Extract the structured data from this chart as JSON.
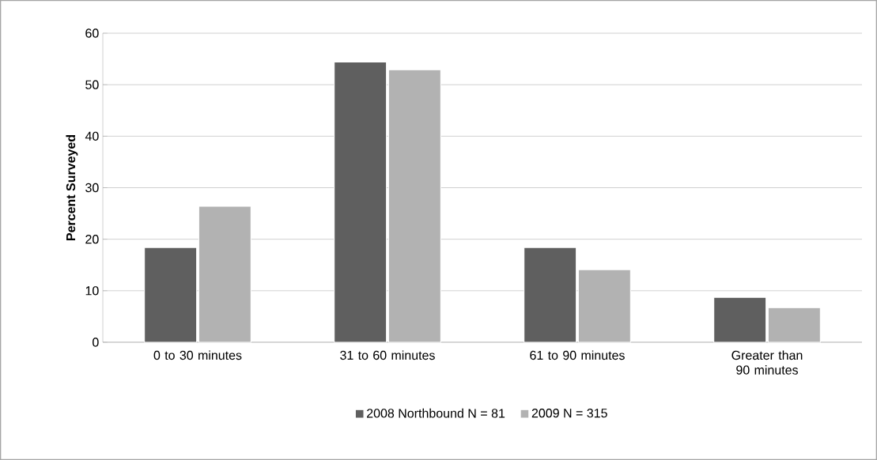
{
  "chart_data": {
    "type": "bar",
    "ylabel": "Percent Surveyed",
    "categories": [
      "0 to 30 minutes",
      "31 to 60 minutes",
      "61 to 90 minutes",
      "Greater than 90 minutes"
    ],
    "series": [
      {
        "name": "2008 Northbound N = 81",
        "color": "#5f5f5f",
        "values": [
          18.4,
          54.4,
          18.4,
          8.7
        ]
      },
      {
        "name": "2009 N = 315",
        "color": "#b2b2b2",
        "values": [
          26.4,
          52.9,
          14.1,
          6.7
        ]
      }
    ],
    "ylim": [
      0,
      60
    ],
    "yticks": [
      0,
      10,
      20,
      30,
      40,
      50,
      60
    ],
    "grid": "y",
    "legend": "bottom"
  }
}
